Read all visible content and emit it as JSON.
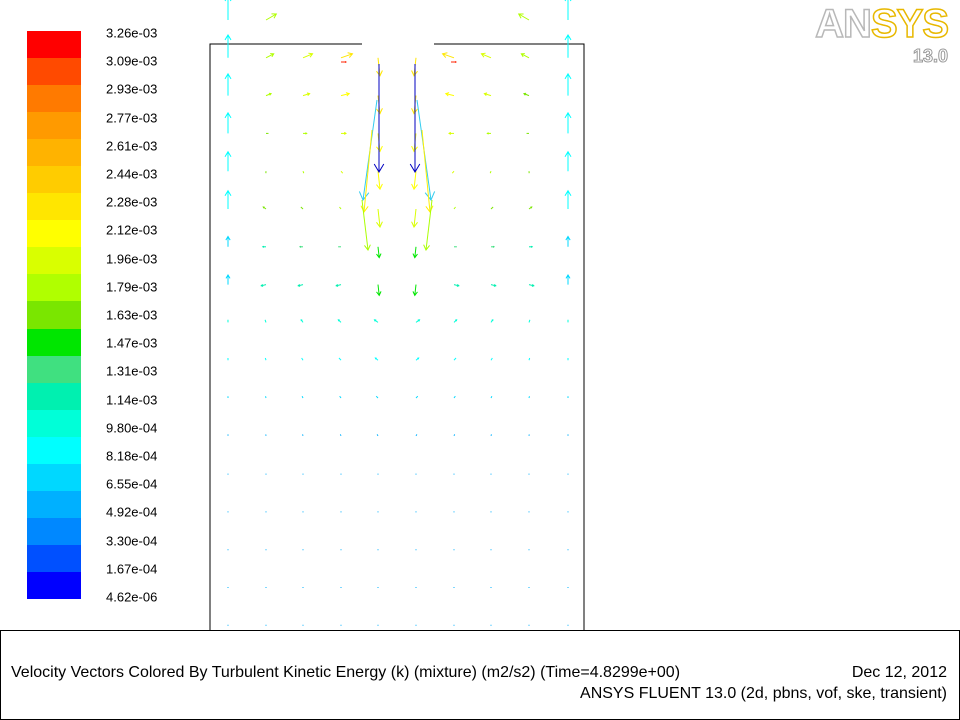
{
  "chart_data": {
    "type": "vector-field",
    "title": "Velocity Vectors Colored By Turbulent Kinetic Energy (k) (mixture)  (m2/s2)  (Time=4.8299e+00)",
    "date": "Dec 12, 2012",
    "solver_info": "ANSYS FLUENT 13.0 (2d, pbns, vof, ske, transient)",
    "colorbar": {
      "labels": [
        "3.26e-03",
        "3.09e-03",
        "2.93e-03",
        "2.77e-03",
        "2.61e-03",
        "2.44e-03",
        "2.28e-03",
        "2.12e-03",
        "1.96e-03",
        "1.79e-03",
        "1.63e-03",
        "1.47e-03",
        "1.31e-03",
        "1.14e-03",
        "9.80e-04",
        "8.18e-04",
        "6.55e-04",
        "4.92e-04",
        "3.30e-04",
        "1.67e-04",
        "4.62e-06"
      ],
      "colors": [
        "#ff0000",
        "#ff4a00",
        "#ff7a00",
        "#ff9a00",
        "#ffb300",
        "#ffcc00",
        "#ffe600",
        "#ffff00",
        "#d9ff00",
        "#b0ff00",
        "#7ae600",
        "#00e600",
        "#40e080",
        "#00f0b0",
        "#00ffd8",
        "#00ffff",
        "#00d8ff",
        "#00b0ff",
        "#0088ff",
        "#0050ff",
        "#0000ff"
      ]
    },
    "vectors_note_grid": {
      "x": [
        0.0,
        0.1,
        0.2,
        0.3,
        0.4,
        0.5,
        0.6,
        0.7,
        0.8,
        0.9,
        1.0
      ],
      "rows": 16
    }
  },
  "logo": {
    "name_left": "AN",
    "name_right": "SYS",
    "version": "13.0"
  }
}
